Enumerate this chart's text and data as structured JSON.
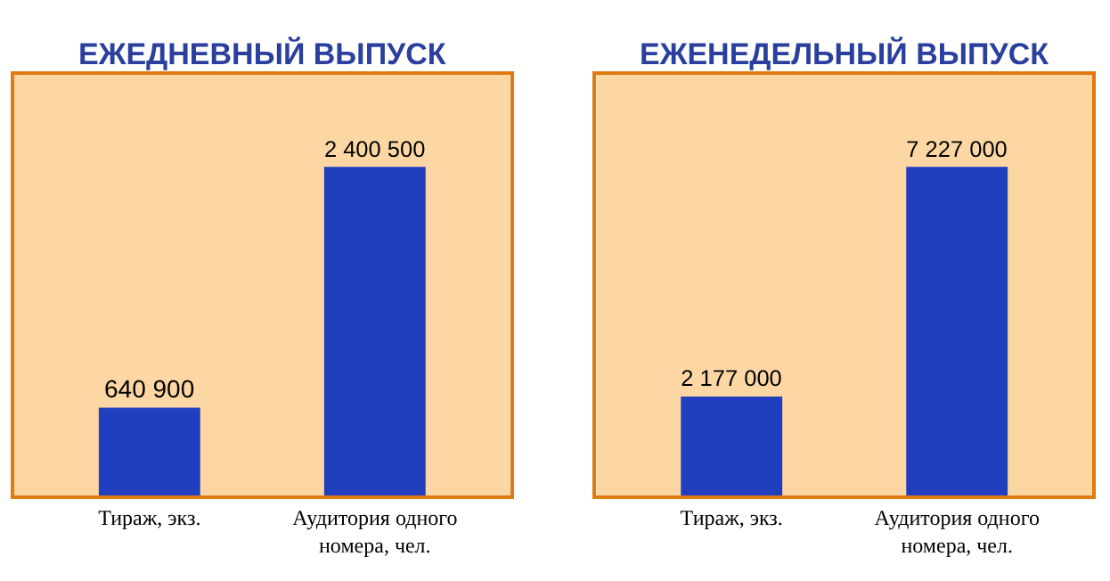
{
  "chart_data": [
    {
      "type": "bar",
      "title": "ЕЖЕДНЕВНЫЙ ВЫПУСК",
      "categories": [
        "Тираж, экз.",
        "Аудитория одного номера, чел."
      ],
      "values": [
        640900,
        2400500
      ],
      "color": "#1f3fbf",
      "data_labels": true,
      "grid": false
    },
    {
      "type": "bar",
      "title": "ЕЖЕНЕДЕЛЬНЫЙ ВЫПУСК",
      "categories": [
        "Тираж, экз.",
        "Аудитория одного номера, чел."
      ],
      "values": [
        2177000,
        7227000
      ],
      "color": "#1f3fbf",
      "data_labels": true,
      "grid": false
    }
  ]
}
